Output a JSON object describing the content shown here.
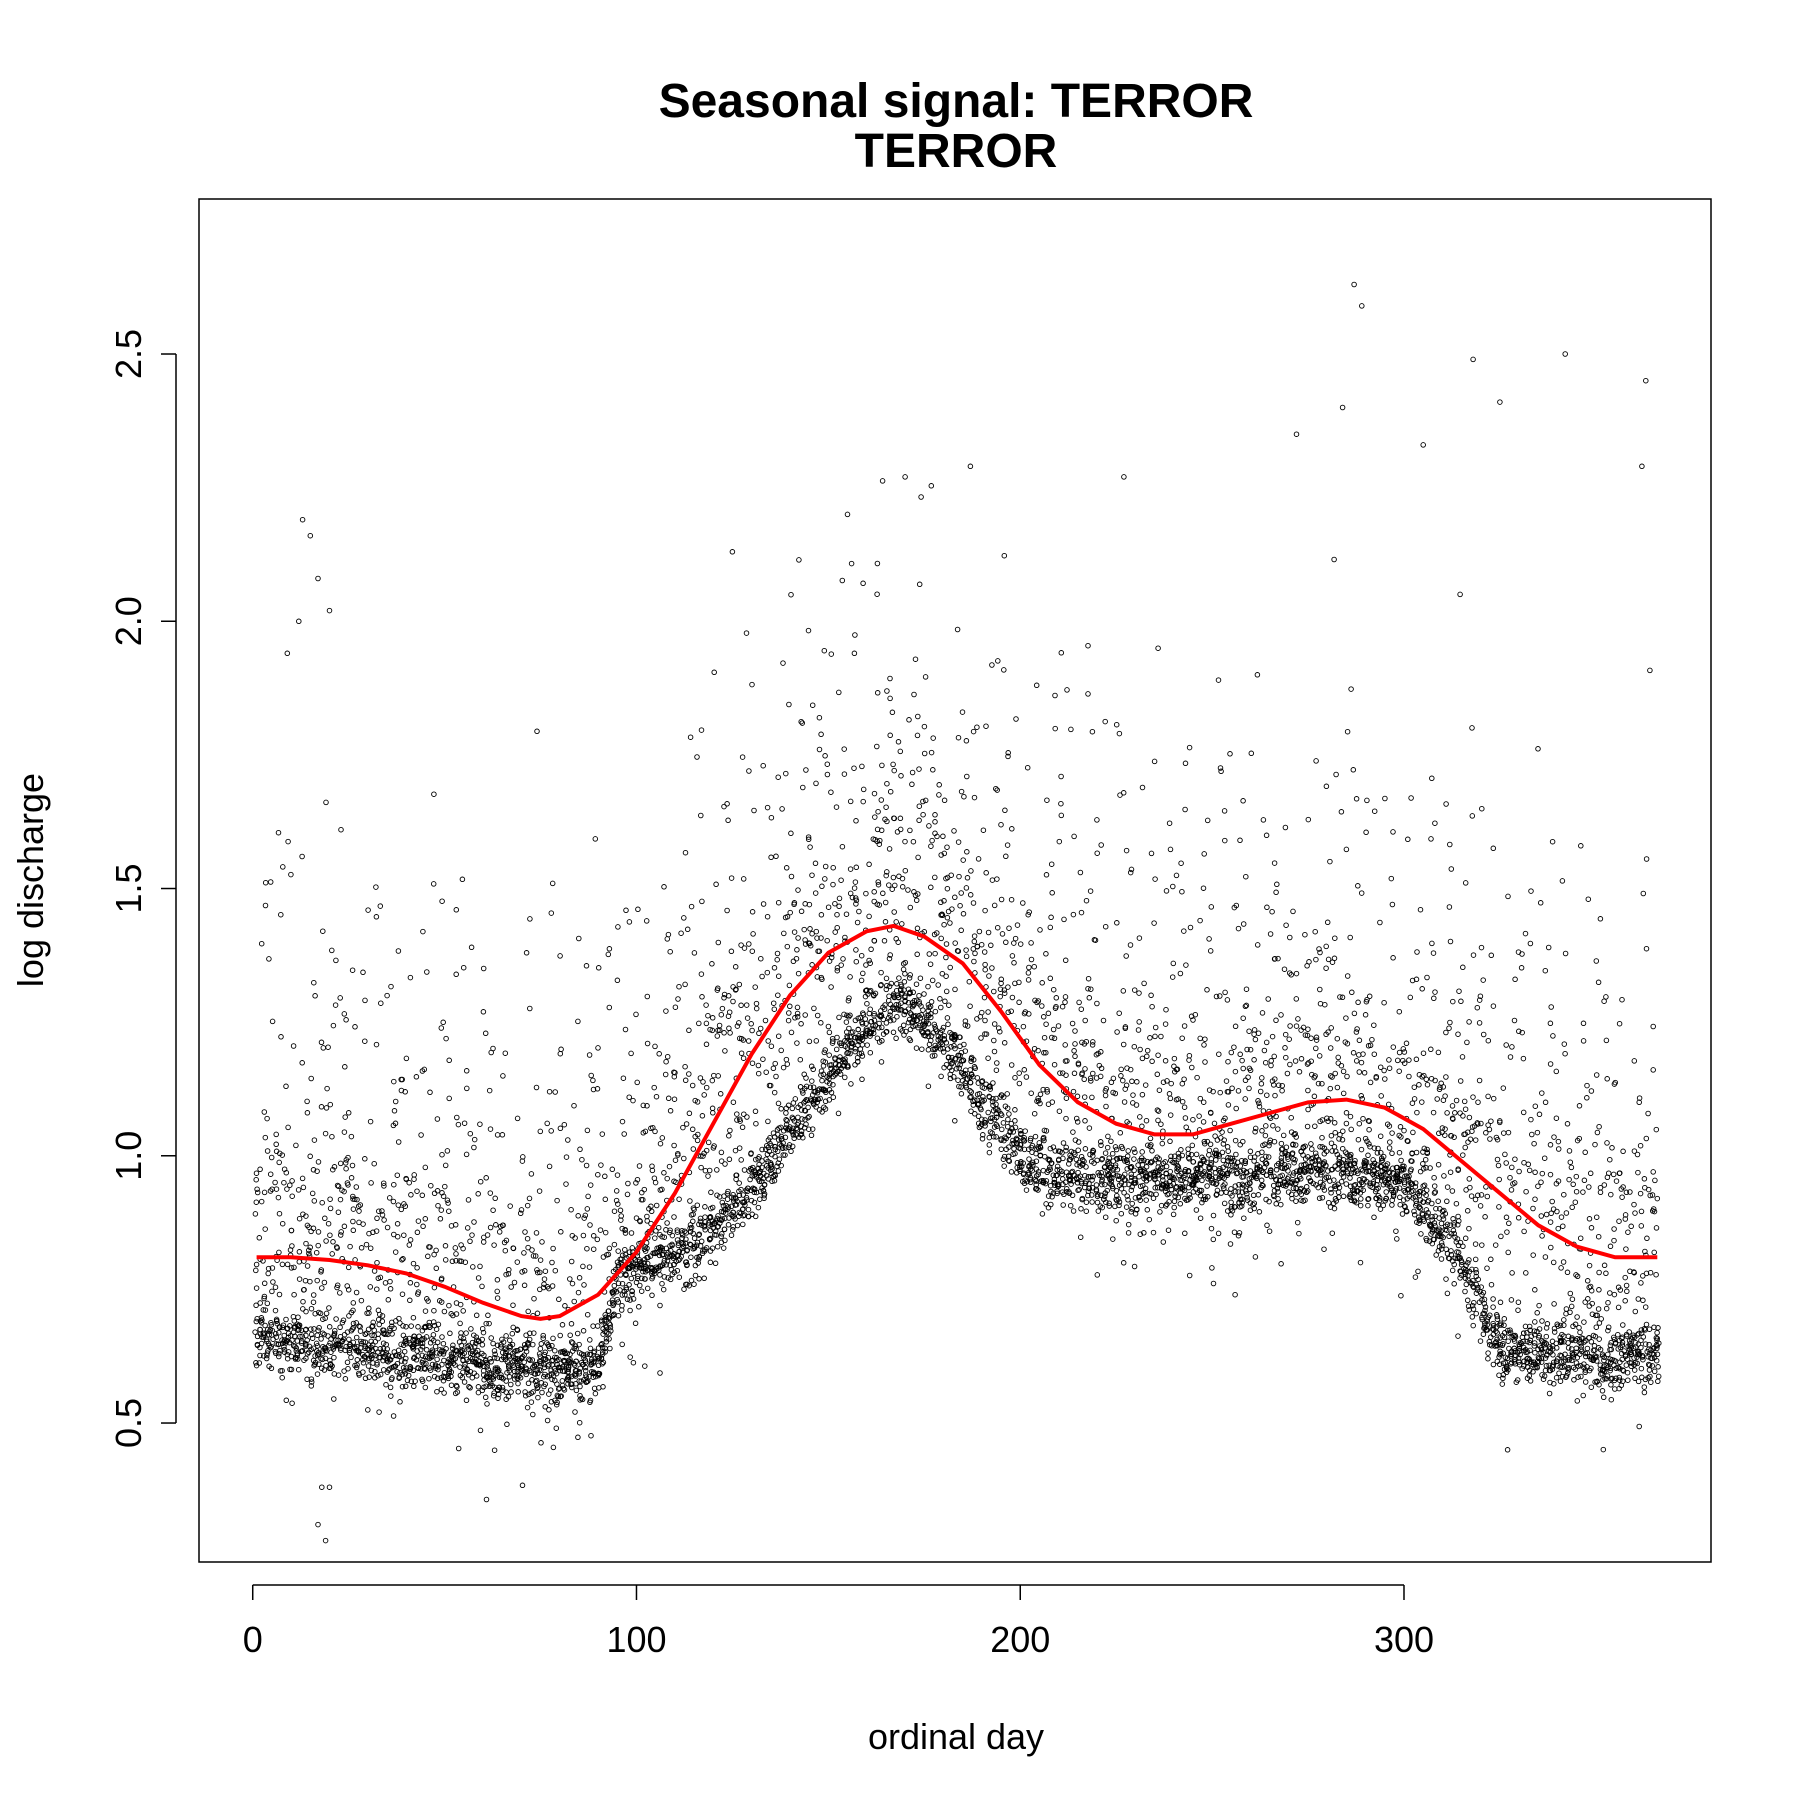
{
  "chart_data": {
    "type": "scatter",
    "title": "Seasonal signal: TERROR",
    "subtitle": "TERROR",
    "xlabel": "ordinal day",
    "ylabel": "log discharge",
    "xlim": [
      -14,
      380
    ],
    "ylim": [
      0.24,
      2.79
    ],
    "x_ticks": [
      0,
      100,
      200,
      300
    ],
    "x_tick_labels": [
      "0",
      "100",
      "200",
      "300"
    ],
    "y_ticks": [
      0.5,
      1.0,
      1.5,
      2.0,
      2.5
    ],
    "y_tick_labels": [
      "0.5",
      "1.0",
      "1.5",
      "2.0",
      "2.5"
    ],
    "grid": false,
    "point_style": "open-circle",
    "point_color": "#000000",
    "fit_color": "#ff0000",
    "fit_curve": {
      "x": [
        1,
        10,
        20,
        30,
        40,
        50,
        60,
        70,
        75,
        80,
        90,
        100,
        110,
        120,
        130,
        140,
        150,
        160,
        167,
        175,
        185,
        195,
        205,
        215,
        225,
        235,
        245,
        255,
        265,
        275,
        285,
        295,
        305,
        315,
        325,
        335,
        345,
        355,
        366
      ],
      "y": [
        0.81,
        0.81,
        0.805,
        0.795,
        0.78,
        0.755,
        0.725,
        0.7,
        0.695,
        0.7,
        0.74,
        0.82,
        0.93,
        1.06,
        1.19,
        1.3,
        1.38,
        1.42,
        1.43,
        1.41,
        1.36,
        1.27,
        1.17,
        1.1,
        1.06,
        1.04,
        1.04,
        1.06,
        1.08,
        1.1,
        1.105,
        1.09,
        1.05,
        0.99,
        0.93,
        0.87,
        0.83,
        0.81,
        0.81
      ]
    },
    "scatter_summary": {
      "n_points_per_day": 18,
      "baseline_x": [
        1,
        10,
        20,
        30,
        40,
        50,
        60,
        70,
        80,
        90,
        95,
        100,
        110,
        120,
        130,
        140,
        150,
        160,
        170,
        180,
        190,
        200,
        210,
        220,
        230,
        240,
        250,
        260,
        270,
        280,
        290,
        300,
        305,
        310,
        315,
        320,
        325,
        330,
        340,
        350,
        366
      ],
      "baseline_y": [
        0.66,
        0.65,
        0.64,
        0.64,
        0.63,
        0.62,
        0.61,
        0.6,
        0.6,
        0.6,
        0.78,
        0.8,
        0.82,
        0.86,
        0.94,
        1.05,
        1.15,
        1.25,
        1.28,
        1.22,
        1.1,
        1.0,
        0.96,
        0.96,
        0.96,
        0.96,
        0.96,
        0.96,
        0.97,
        0.97,
        0.96,
        0.95,
        0.9,
        0.86,
        0.8,
        0.72,
        0.64,
        0.63,
        0.63,
        0.62,
        0.63
      ],
      "outliers": [
        [
          13,
          2.19
        ],
        [
          15,
          2.16
        ],
        [
          17,
          2.08
        ],
        [
          20,
          2.02
        ],
        [
          12,
          2.0
        ],
        [
          9,
          1.94
        ],
        [
          125,
          2.13
        ],
        [
          155,
          2.2
        ],
        [
          170,
          2.27
        ],
        [
          187,
          2.29
        ],
        [
          227,
          2.27
        ],
        [
          272,
          2.35
        ],
        [
          284,
          2.4
        ],
        [
          287,
          2.63
        ],
        [
          289,
          2.59
        ],
        [
          305,
          2.33
        ],
        [
          318,
          2.49
        ],
        [
          325,
          2.41
        ],
        [
          342,
          2.5
        ],
        [
          363,
          2.45
        ],
        [
          362,
          2.29
        ],
        [
          18,
          0.38
        ],
        [
          20,
          0.38
        ],
        [
          17,
          0.31
        ],
        [
          19,
          0.28
        ],
        [
          327,
          0.45
        ],
        [
          256,
          0.74
        ]
      ]
    }
  }
}
